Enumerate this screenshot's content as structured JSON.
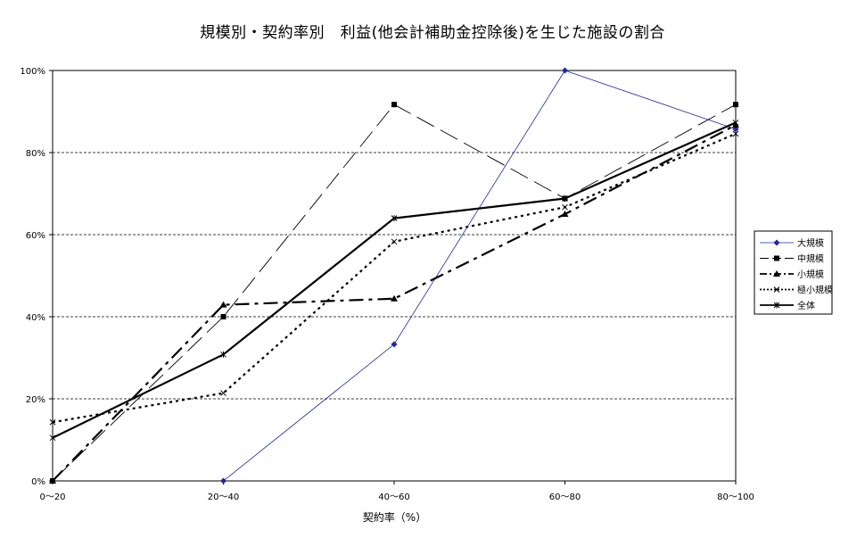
{
  "chart_data": {
    "type": "line",
    "title": "規模別・契約率別　利益(他会計補助金控除後)を生じた施設の割合",
    "xlabel": "契約率（%）",
    "ylabel": "",
    "categories": [
      "0～20",
      "20～40",
      "40～60",
      "60～80",
      "80～100"
    ],
    "ylim": [
      0,
      100
    ],
    "yticks": [
      "0%",
      "20%",
      "40%",
      "60%",
      "80%",
      "100%"
    ],
    "ytick_values": [
      0,
      20,
      40,
      60,
      80,
      100
    ],
    "grid": "horizontal dashed",
    "legend_position": "right",
    "series": [
      {
        "name": "大規模",
        "values": [
          null,
          0,
          33.3,
          100,
          85.7
        ],
        "color": "#1f2a9e",
        "style": "solid-thin",
        "marker": "diamond"
      },
      {
        "name": "中規模",
        "values": [
          0,
          40,
          91.7,
          68.8,
          91.7
        ],
        "color": "#000000",
        "style": "long-dash",
        "marker": "square"
      },
      {
        "name": "小規模",
        "values": [
          0,
          42.9,
          44.4,
          65,
          86.7
        ],
        "color": "#000000",
        "style": "dash-dot",
        "marker": "triangle"
      },
      {
        "name": "極小規模",
        "values": [
          14.3,
          21.4,
          58.3,
          66.7,
          84.6
        ],
        "color": "#000000",
        "style": "dotted",
        "marker": "x"
      },
      {
        "name": "全体",
        "values": [
          10.5,
          30.8,
          64,
          68.8,
          87.3
        ],
        "color": "#000000",
        "style": "solid-thick",
        "marker": "star"
      }
    ]
  }
}
